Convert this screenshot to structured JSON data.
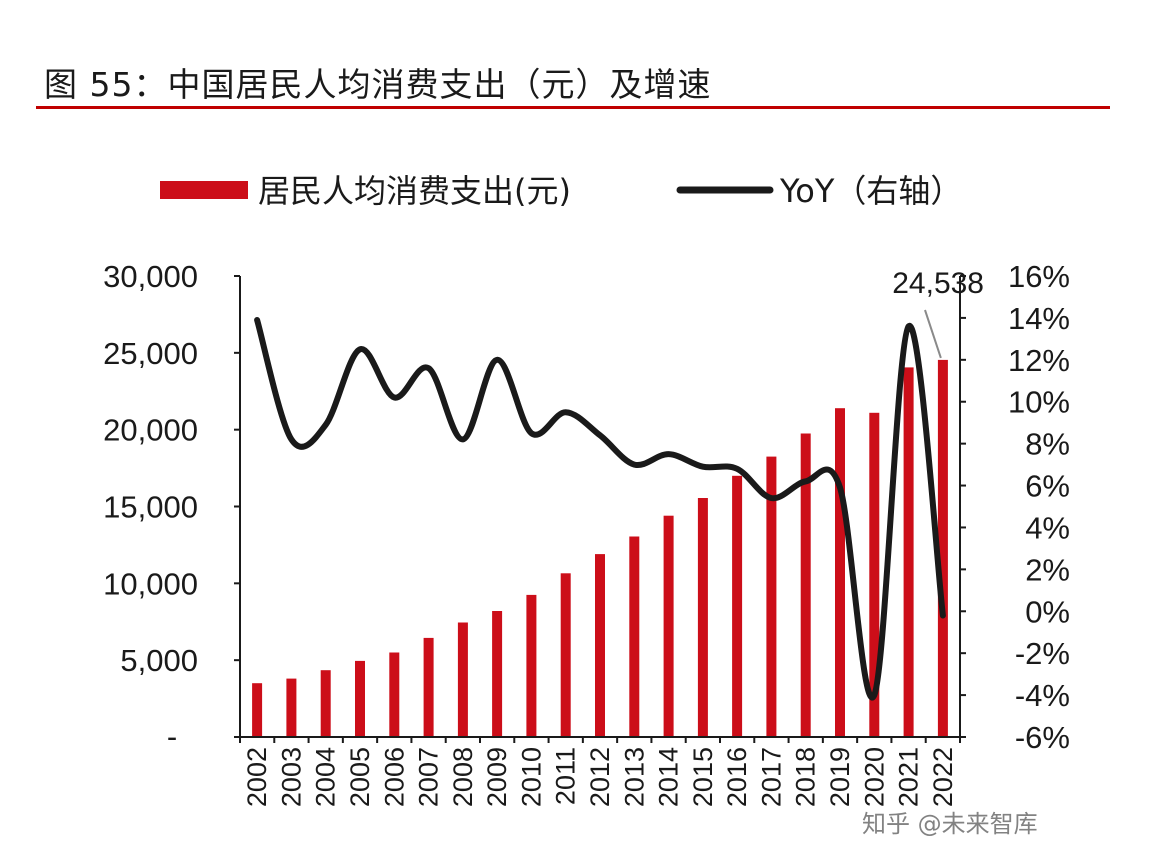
{
  "title": "图 55：中国居民人均消费支出（元）及增速",
  "watermark": "知乎 @未来智库",
  "colors": {
    "bar": "#cc0e19",
    "line": "#1a1a1a",
    "rule": "#c00000"
  },
  "chart_data": {
    "type": "bar+line",
    "categories": [
      "2002",
      "2003",
      "2004",
      "2005",
      "2006",
      "2007",
      "2008",
      "2009",
      "2010",
      "2011",
      "2012",
      "2013",
      "2014",
      "2015",
      "2016",
      "2017",
      "2018",
      "2019",
      "2020",
      "2021",
      "2022"
    ],
    "series": [
      {
        "name": "居民人均消费支出(元)",
        "type": "bar",
        "axis": "left",
        "values": [
          3500,
          3800,
          4350,
          4950,
          5500,
          6450,
          7450,
          8200,
          9250,
          10650,
          11900,
          13050,
          14400,
          15550,
          17000,
          18250,
          19750,
          21400,
          21100,
          24050,
          24538
        ]
      },
      {
        "name": "YoY（右轴）",
        "type": "line",
        "axis": "right",
        "unit": "%",
        "values": [
          13.9,
          8.2,
          8.9,
          12.5,
          10.2,
          11.6,
          8.2,
          12.0,
          8.5,
          9.5,
          8.4,
          7.0,
          7.5,
          6.9,
          6.8,
          5.4,
          6.2,
          5.9,
          -4.0,
          13.6,
          -0.2
        ]
      }
    ],
    "y_left": {
      "min": 0,
      "max": 30000,
      "ticks": [
        0,
        5000,
        10000,
        15000,
        20000,
        25000,
        30000
      ],
      "tick_labels": [
        "-",
        "5,000",
        "10,000",
        "15,000",
        "20,000",
        "25,000",
        "30,000"
      ]
    },
    "y_right": {
      "min": -6,
      "max": 16,
      "ticks": [
        -6,
        -4,
        -2,
        0,
        2,
        4,
        6,
        8,
        10,
        12,
        14,
        16
      ],
      "tick_labels": [
        "-6%",
        "-4%",
        "-2%",
        "0%",
        "2%",
        "4%",
        "6%",
        "8%",
        "10%",
        "12%",
        "14%",
        "16%"
      ]
    },
    "annotation": {
      "text": "24,538",
      "category": "2022"
    },
    "legend": "top",
    "grid": false
  }
}
